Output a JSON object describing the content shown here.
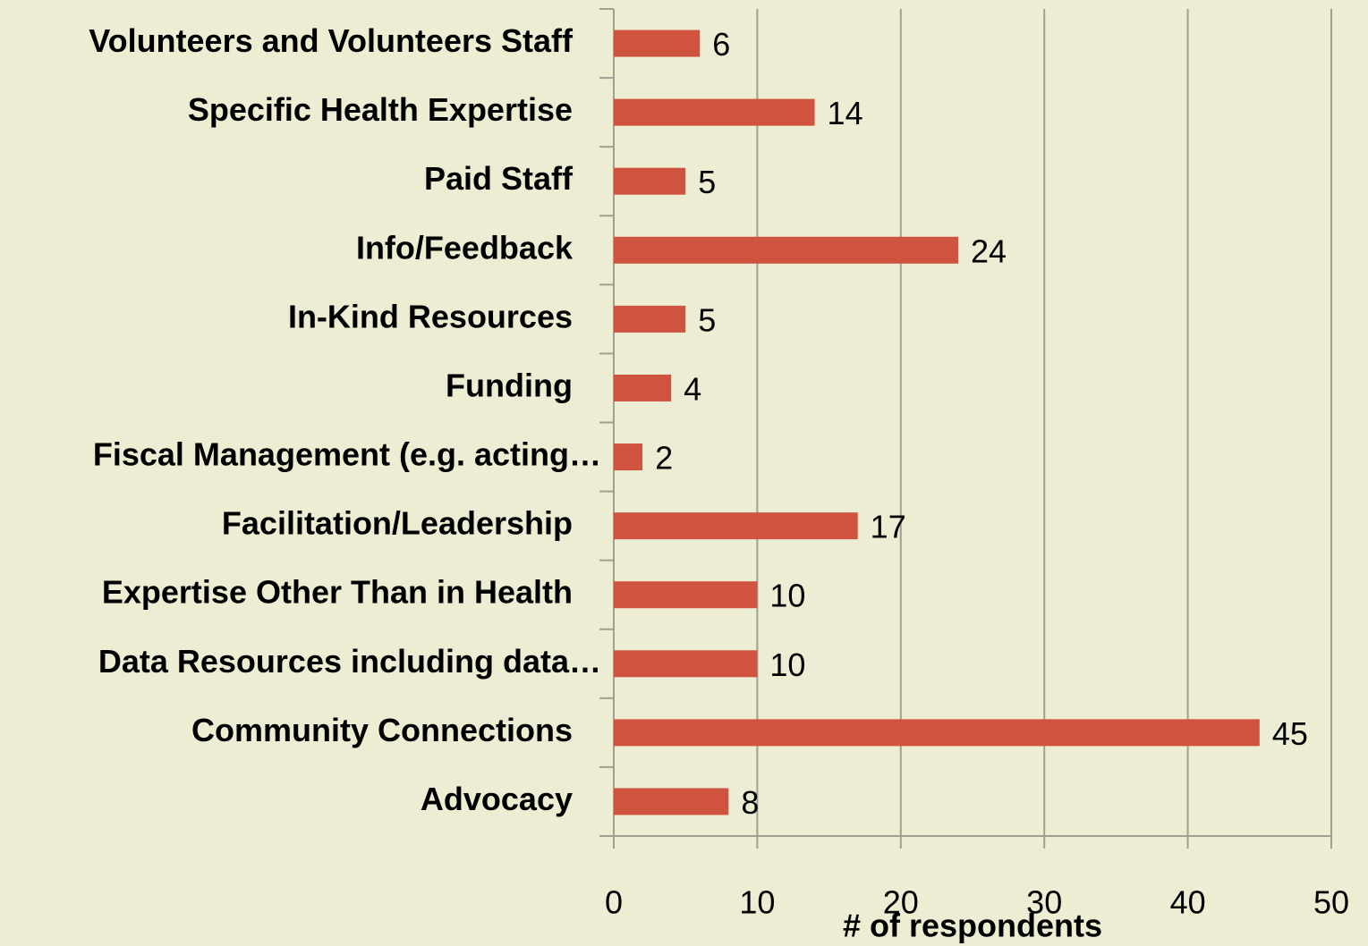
{
  "chart_data": {
    "type": "bar",
    "orientation": "horizontal",
    "x_label": "# of respondents",
    "categories": [
      "Volunteers and Volunteers Staff",
      "Specific Health Expertise",
      "Paid Staff",
      "Info/Feedback",
      "In-Kind Resources",
      "Funding",
      "Fiscal Management (e.g. acting…",
      "Facilitation/Leadership",
      "Expertise Other Than in Health",
      "Data Resources including data…",
      "Community Connections",
      "Advocacy"
    ],
    "values": [
      6,
      14,
      5,
      24,
      5,
      4,
      2,
      17,
      10,
      10,
      45,
      8
    ],
    "color": "#d0533f",
    "xlim": [
      0,
      50
    ],
    "xticks": [
      0,
      10,
      20,
      30,
      40,
      50
    ],
    "grid": true
  }
}
